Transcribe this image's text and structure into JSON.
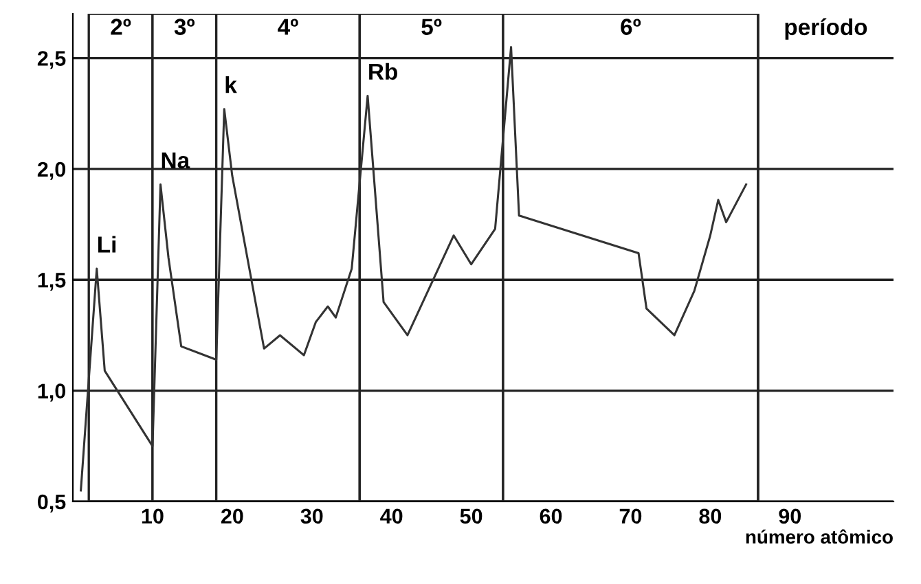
{
  "chart_data": {
    "type": "line",
    "xlabel": "número atômico",
    "x": [
      1,
      3,
      4,
      10,
      11,
      12,
      13.6,
      18,
      19,
      20,
      24,
      26,
      29,
      30.5,
      32,
      33,
      35,
      37,
      39,
      42,
      47.8,
      50,
      53,
      55,
      56,
      71,
      72,
      75.5,
      78,
      80,
      81,
      82,
      84.5
    ],
    "series": [
      {
        "color": "#333333",
        "values": [
          0.55,
          1.55,
          1.09,
          0.75,
          1.93,
          1.6,
          1.2,
          1.14,
          2.27,
          1.97,
          1.19,
          1.25,
          1.16,
          1.31,
          1.38,
          1.33,
          1.55,
          2.33,
          1.4,
          1.25,
          1.7,
          1.57,
          1.73,
          2.55,
          1.79,
          1.62,
          1.37,
          1.25,
          1.45,
          1.7,
          1.86,
          1.76,
          1.93
        ]
      }
    ],
    "xlim": [
      0,
      103
    ],
    "ylim": [
      0.5,
      2.7
    ],
    "xticks": [
      10,
      20,
      30,
      40,
      50,
      60,
      70,
      80,
      90
    ],
    "yticks": [
      {
        "value": 0.5,
        "label": "0,5"
      },
      {
        "value": 1.0,
        "label": "1,0"
      },
      {
        "value": 1.5,
        "label": "1,5"
      },
      {
        "value": 2.0,
        "label": "2,0"
      },
      {
        "value": 2.5,
        "label": "2,5"
      }
    ],
    "grid": "y",
    "marker": "none",
    "line_style": "solid",
    "bands": [
      {
        "axis": "x",
        "from": 2,
        "to": 10,
        "label": "2º",
        "color": "#ffffff"
      },
      {
        "axis": "x",
        "from": 10,
        "to": 18,
        "label": "3º",
        "color": "#ffffff"
      },
      {
        "axis": "x",
        "from": 18,
        "to": 36,
        "label": "4º",
        "color": "#ffffff"
      },
      {
        "axis": "x",
        "from": 36,
        "to": 54,
        "label": "5º",
        "color": "#ffffff"
      },
      {
        "axis": "x",
        "from": 54,
        "to": 86,
        "label": "6º",
        "color": "#ffffff"
      }
    ],
    "ref_lines": [
      {
        "axis": "x",
        "value": 86,
        "label": "período"
      }
    ],
    "annotations": [
      {
        "text": "Li",
        "x": 3,
        "y": 1.55
      },
      {
        "text": "Na",
        "x": 11,
        "y": 1.93
      },
      {
        "text": "k",
        "x": 19,
        "y": 2.27
      },
      {
        "text": "Rb",
        "x": 37,
        "y": 2.33
      }
    ]
  }
}
